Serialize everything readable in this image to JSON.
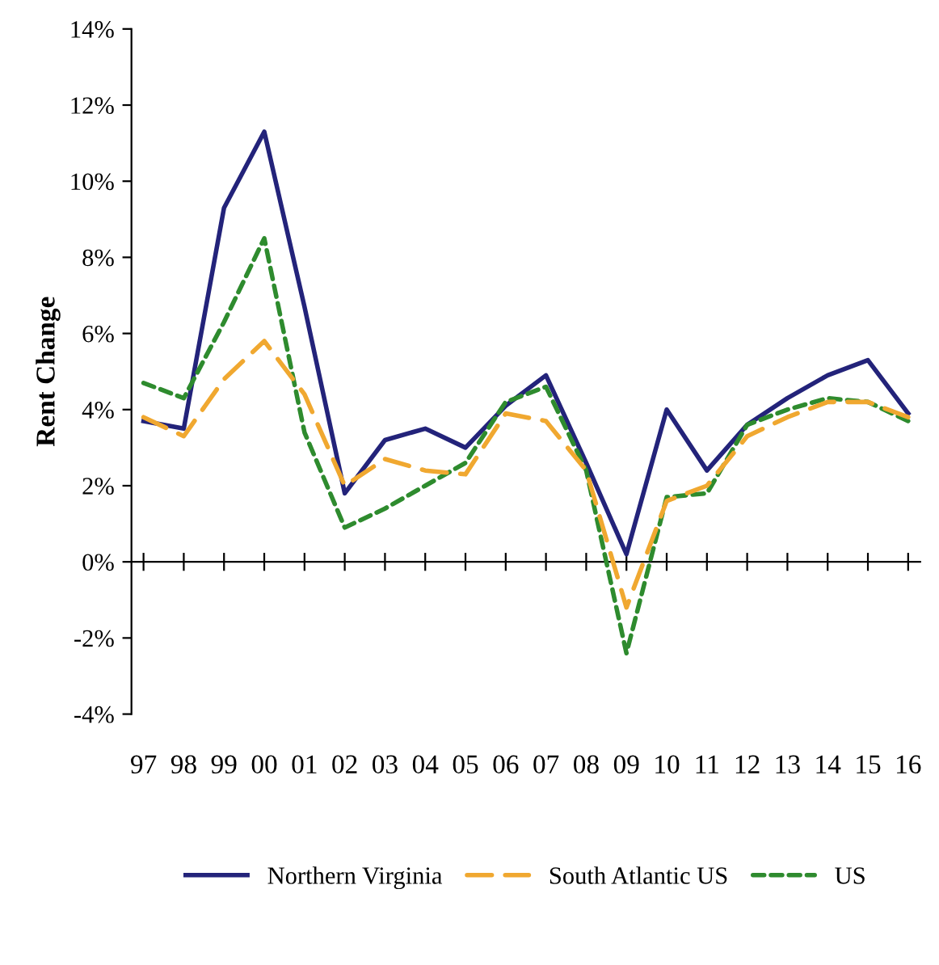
{
  "chart_data": {
    "type": "line",
    "ylabel": "Rent Change",
    "categories": [
      "97",
      "98",
      "99",
      "00",
      "01",
      "02",
      "03",
      "04",
      "05",
      "06",
      "07",
      "08",
      "09",
      "10",
      "11",
      "12",
      "13",
      "14",
      "15",
      "16"
    ],
    "series": [
      {
        "name": "Northern Virginia",
        "color": "#23237a",
        "line_style": "solid",
        "values": [
          3.7,
          3.5,
          9.3,
          11.3,
          6.7,
          1.8,
          3.2,
          3.5,
          3.0,
          4.1,
          4.9,
          2.6,
          0.2,
          4.0,
          2.4,
          3.6,
          4.3,
          4.9,
          5.3,
          3.9
        ]
      },
      {
        "name": "South Atlantic US",
        "color": "#f0a830",
        "line_style": "dashed",
        "values": [
          3.8,
          3.3,
          4.8,
          5.8,
          4.4,
          2.0,
          2.7,
          2.4,
          2.3,
          3.9,
          3.7,
          2.4,
          -1.2,
          1.6,
          2.0,
          3.3,
          3.8,
          4.2,
          4.2,
          3.8
        ]
      },
      {
        "name": "US",
        "color": "#2e8b2e",
        "line_style": "dotted",
        "values": [
          4.7,
          4.3,
          6.3,
          8.5,
          3.4,
          0.9,
          1.4,
          2.0,
          2.6,
          4.2,
          4.6,
          2.4,
          -2.4,
          1.7,
          1.8,
          3.6,
          4.0,
          4.3,
          4.2,
          3.7
        ]
      }
    ],
    "ylim": [
      -4,
      14
    ],
    "yticks": [
      {
        "value": -4,
        "label": "-4%"
      },
      {
        "value": -2,
        "label": "-2%"
      },
      {
        "value": 0,
        "label": "0%"
      },
      {
        "value": 2,
        "label": "2%"
      },
      {
        "value": 4,
        "label": "4%"
      },
      {
        "value": 6,
        "label": "6%"
      },
      {
        "value": 8,
        "label": "8%"
      },
      {
        "value": 10,
        "label": "10%"
      },
      {
        "value": 12,
        "label": "12%"
      },
      {
        "value": 14,
        "label": "14%"
      }
    ],
    "legend": "bottom",
    "marker": "none"
  }
}
